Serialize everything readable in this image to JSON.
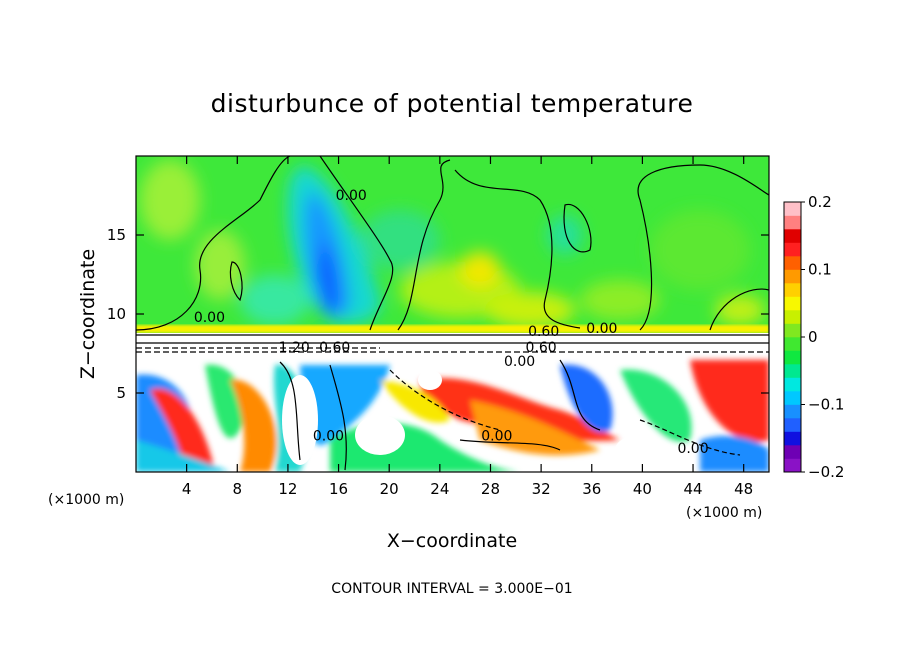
{
  "chart_data": {
    "type": "heatmap",
    "title": "disturbunce of potential temperature",
    "xlabel": "X−coordinate",
    "ylabel": "Z−coordinate",
    "x_unit_label": "(×1000 m)",
    "z_unit_label": "(×1000 m)",
    "xlim": [
      0,
      50
    ],
    "zlim": [
      0,
      20
    ],
    "x_ticks": [
      4,
      8,
      12,
      16,
      20,
      24,
      28,
      32,
      36,
      40,
      44,
      48
    ],
    "z_ticks": [
      5,
      10,
      15
    ],
    "colorbar": {
      "range": [
        -0.2,
        0.2
      ],
      "tick_values": [
        0.2,
        0.1,
        0,
        -0.1,
        -0.2
      ],
      "tick_labels": [
        "0.2",
        "0.1",
        "0",
        "−0.1",
        "−0.2"
      ],
      "colors": [
        "#8a12c6",
        "#6e00b4",
        "#1010e0",
        "#2060ff",
        "#1890ff",
        "#00c8ff",
        "#00e8e0",
        "#00e890",
        "#10e840",
        "#40e830",
        "#80e820",
        "#c8f000",
        "#f8f800",
        "#ffd000",
        "#ff9a00",
        "#ff6000",
        "#ff2020",
        "#e00000",
        "#ff8080",
        "#ffc0c8"
      ]
    },
    "contour_labels": [
      {
        "text": "0.00",
        "x": 17.0,
        "z": 17.2
      },
      {
        "text": "0.00",
        "x": 5.8,
        "z": 9.5
      },
      {
        "text": "0.60",
        "x": 32.2,
        "z": 8.6
      },
      {
        "text": "0.00",
        "x": 36.8,
        "z": 8.8
      },
      {
        "text": "1.20",
        "x": 12.5,
        "z": 7.6
      },
      {
        "text": "0.60",
        "x": 15.7,
        "z": 7.6
      },
      {
        "text": "0.60",
        "x": 32.0,
        "z": 7.6
      },
      {
        "text": "0.00",
        "x": 30.3,
        "z": 6.7
      },
      {
        "text": "0.00",
        "x": 15.2,
        "z": 2.0
      },
      {
        "text": "0.00",
        "x": 28.5,
        "z": 2.0
      },
      {
        "text": "0.00",
        "x": 44.0,
        "z": 1.2
      }
    ],
    "contour_interval_text": "CONTOUR INTERVAL = 3.000E−01"
  }
}
